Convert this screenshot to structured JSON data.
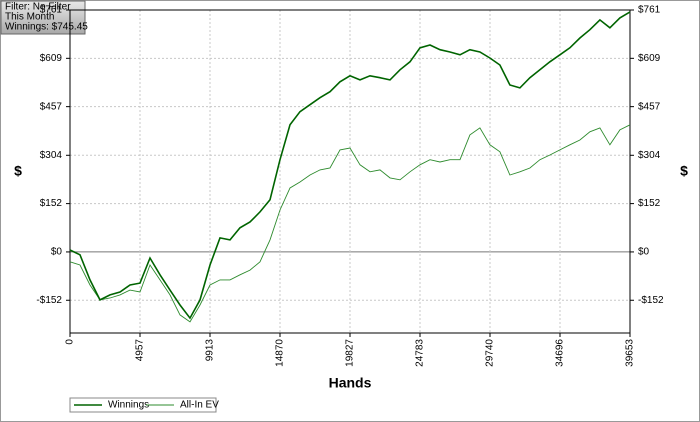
{
  "chart_data": {
    "type": "line",
    "info": [
      "Filter: No Filter",
      "This Month",
      "Winnings: $745.45"
    ],
    "xlabel": "Hands",
    "ylabel": "$",
    "y2label": "$",
    "xlim": [
      0,
      39653
    ],
    "xticks": [
      0,
      4957,
      9913,
      14870,
      19827,
      24783,
      29740,
      34696,
      39653
    ],
    "ylim": [
      -255,
      761
    ],
    "yticks": [
      {
        "value": -152,
        "label": "-$152"
      },
      {
        "value": 0,
        "label": "$0"
      },
      {
        "value": 152,
        "label": "$152"
      },
      {
        "value": 304,
        "label": "$304"
      },
      {
        "value": 457,
        "label": "$457"
      },
      {
        "value": 609,
        "label": "$609"
      },
      {
        "value": 761,
        "label": "$761"
      }
    ],
    "grid": true,
    "x": [
      0,
      708,
      1416,
      2124,
      2832,
      3540,
      4248,
      4956,
      5664,
      6372,
      7080,
      7788,
      8496,
      9204,
      9912,
      10620,
      11328,
      12036,
      12744,
      13452,
      14160,
      14868,
      15576,
      16284,
      16992,
      17700,
      18408,
      19116,
      19824,
      20532,
      21240,
      21948,
      22656,
      23364,
      24072,
      24780,
      25488,
      26196,
      26904,
      27612,
      28320,
      29028,
      29736,
      30444,
      31152,
      31860,
      32568,
      33276,
      33984,
      34692,
      35400,
      36108,
      36816,
      37524,
      38232,
      38940,
      39653
    ],
    "series": [
      {
        "name": "Winnings",
        "color": "#006400",
        "values": [
          6,
          -9,
          -88,
          -151,
          -135,
          -126,
          -104,
          -98,
          -19,
          -72,
          -120,
          -167,
          -208,
          -151,
          -41,
          44,
          38,
          76,
          94,
          126,
          164,
          290,
          400,
          441,
          463,
          485,
          504,
          535,
          554,
          541,
          554,
          548,
          541,
          573,
          598,
          642,
          651,
          636,
          629,
          620,
          636,
          629,
          610,
          588,
          525,
          516,
          548,
          573,
          598,
          620,
          642,
          673,
          699,
          730,
          705,
          736,
          755
        ]
      },
      {
        "name": "All-In EV",
        "color": "#2e8b2e",
        "values": [
          -31,
          -41,
          -104,
          -151,
          -145,
          -135,
          -120,
          -126,
          -41,
          -88,
          -135,
          -198,
          -220,
          -167,
          -104,
          -88,
          -88,
          -72,
          -57,
          -31,
          38,
          132,
          201,
          220,
          242,
          258,
          264,
          321,
          327,
          274,
          252,
          258,
          233,
          227,
          252,
          274,
          290,
          283,
          290,
          290,
          368,
          390,
          337,
          315,
          242,
          252,
          264,
          290,
          305,
          321,
          337,
          352,
          378,
          390,
          337,
          384,
          400
        ]
      }
    ]
  }
}
